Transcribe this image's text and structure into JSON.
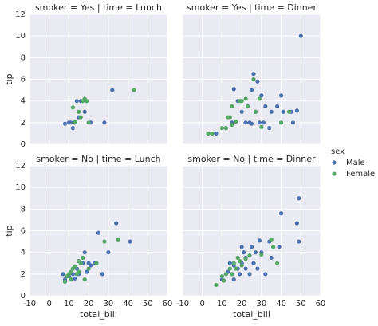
{
  "legend": {
    "title": "sex"
  },
  "chart_data": [
    {
      "type": "scatter",
      "title": "smoker = Yes | time = Lunch",
      "ylabel": "tip",
      "xlim": [
        -10,
        60
      ],
      "xticks": [
        -10,
        0,
        10,
        20,
        30,
        40,
        50,
        60
      ],
      "ylim": [
        0,
        12
      ],
      "yticks": [
        0,
        2,
        4,
        6,
        8,
        10,
        12
      ],
      "series": [
        {
          "name": "Male",
          "color": "#4c72b0",
          "x": [
            8,
            10,
            11,
            12,
            13,
            14,
            15,
            16,
            18,
            19,
            21,
            28,
            32
          ],
          "values": [
            1.9,
            2,
            2,
            1.5,
            2,
            4,
            2.5,
            4,
            3,
            4,
            2,
            2,
            5
          ]
        },
        {
          "name": "Female",
          "color": "#55a868",
          "x": [
            12,
            13,
            15,
            16,
            17,
            18,
            19,
            20,
            43
          ],
          "values": [
            3.4,
            2.1,
            3,
            2.5,
            4,
            4.2,
            4,
            2,
            5
          ]
        }
      ]
    },
    {
      "type": "scatter",
      "title": "smoker = Yes | time = Dinner",
      "xlim": [
        -10,
        60
      ],
      "xticks": [
        -10,
        0,
        10,
        20,
        30,
        40,
        50,
        60
      ],
      "ylim": [
        0,
        12
      ],
      "yticks": [
        0,
        2,
        4,
        6,
        8,
        10,
        12
      ],
      "series": [
        {
          "name": "Male",
          "color": "#4c72b0",
          "x": [
            50,
            7,
            12,
            15,
            16,
            18,
            20,
            22,
            24,
            25,
            26,
            27,
            28,
            29,
            30,
            31,
            32,
            34,
            35,
            38,
            40,
            41,
            45,
            46,
            48,
            25,
            23
          ],
          "values": [
            10,
            1,
            1.5,
            2,
            5.1,
            4,
            3,
            2,
            2,
            5,
            6.5,
            3,
            5.8,
            2,
            4.5,
            2,
            3.5,
            1.5,
            3,
            3.5,
            4.5,
            3,
            3,
            2,
            3.1,
            1.9,
            3.5
          ]
        },
        {
          "name": "Female",
          "color": "#55a868",
          "x": [
            3,
            5,
            10,
            13,
            14,
            15,
            17,
            19,
            20,
            22,
            23,
            26,
            27,
            29,
            30,
            40,
            44,
            15,
            12
          ],
          "values": [
            1,
            1,
            1.5,
            2.5,
            2.5,
            1.8,
            2.1,
            4,
            4,
            4.2,
            3.5,
            6,
            3,
            4.2,
            1.6,
            2,
            3,
            3.5,
            1.5
          ]
        }
      ]
    },
    {
      "type": "scatter",
      "title": "smoker = No | time = Lunch",
      "xlabel": "total_bill",
      "ylabel": "tip",
      "xlim": [
        -10,
        60
      ],
      "xticks": [
        -10,
        0,
        10,
        20,
        30,
        40,
        50,
        60
      ],
      "ylim": [
        0,
        12
      ],
      "yticks": [
        0,
        2,
        4,
        6,
        8,
        10,
        12
      ],
      "series": [
        {
          "name": "Male",
          "color": "#4c72b0",
          "x": [
            7,
            8,
            10,
            12,
            14,
            15,
            17,
            18,
            19,
            20,
            21,
            23,
            25,
            27,
            30,
            34,
            41,
            13
          ],
          "values": [
            2,
            1.5,
            1.8,
            2,
            2.5,
            2,
            3,
            4,
            2.2,
            3,
            2.8,
            3,
            5.8,
            2,
            4,
            6.7,
            5,
            1.6
          ]
        },
        {
          "name": "Female",
          "color": "#55a868",
          "x": [
            8,
            9,
            10,
            11,
            12,
            13,
            14,
            15,
            16,
            17,
            18,
            20,
            24,
            28,
            35,
            11,
            15
          ],
          "values": [
            1.3,
            1.8,
            2,
            2.2,
            2.5,
            2.7,
            2,
            3.2,
            3,
            3.5,
            1.5,
            2.5,
            3,
            5,
            5.2,
            1.5,
            2.2
          ]
        }
      ]
    },
    {
      "type": "scatter",
      "title": "smoker = No | time = Dinner",
      "xlabel": "total_bill",
      "xlim": [
        -10,
        60
      ],
      "xticks": [
        -10,
        0,
        10,
        20,
        30,
        40,
        50,
        60
      ],
      "ylim": [
        0,
        12
      ],
      "yticks": [
        0,
        2,
        4,
        6,
        8,
        10,
        12
      ],
      "series": [
        {
          "name": "Male",
          "color": "#4c72b0",
          "x": [
            49,
            40,
            48,
            49,
            34,
            30,
            25,
            22,
            20,
            18,
            15,
            12,
            10,
            14,
            16,
            19,
            21,
            24,
            26,
            28,
            32,
            35,
            39,
            16,
            13,
            22,
            20,
            27,
            29
          ],
          "values": [
            9,
            7.6,
            6.7,
            5,
            5,
            4,
            4.5,
            3.5,
            3,
            2.5,
            2,
            2,
            1.5,
            3,
            1.5,
            2,
            4,
            2,
            3,
            2.5,
            2,
            3.5,
            4.5,
            2.8,
            2.2,
            2.5,
            4.5,
            4,
            5.1
          ]
        },
        {
          "name": "Female",
          "color": "#55a868",
          "x": [
            7,
            10,
            12,
            14,
            16,
            18,
            20,
            22,
            24,
            30,
            35,
            36,
            38,
            15,
            19,
            11,
            17
          ],
          "values": [
            1,
            1.8,
            2,
            2.5,
            3,
            3.5,
            2.8,
            3.4,
            3.7,
            3.8,
            5.2,
            4.5,
            3,
            2,
            3.2,
            1.4,
            2.5
          ]
        }
      ]
    }
  ]
}
